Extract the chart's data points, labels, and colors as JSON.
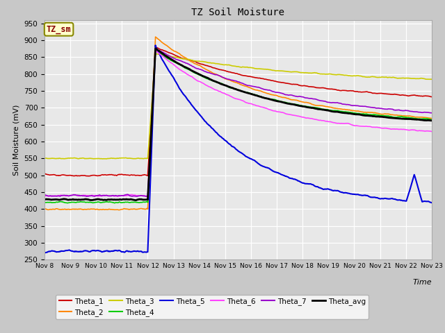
{
  "title": "TZ Soil Moisture",
  "xlabel": "Time",
  "ylabel": "Soil Moisture (mV)",
  "ylim": [
    250,
    960
  ],
  "yticks": [
    250,
    300,
    350,
    400,
    450,
    500,
    550,
    600,
    650,
    700,
    750,
    800,
    850,
    900,
    950
  ],
  "xtick_labels": [
    "Nov 8",
    "Nov 9",
    "Nov 10",
    "Nov 11",
    "Nov 12",
    "Nov 13",
    "Nov 14",
    "Nov 15",
    "Nov 16",
    "Nov 17",
    "Nov 18",
    "Nov 19",
    "Nov 20",
    "Nov 21",
    "Nov 22",
    "Nov 23"
  ],
  "fig_bg": "#c8c8c8",
  "plot_bg": "#e8e8e8",
  "series": {
    "Theta_1": {
      "color": "#cc0000",
      "lw": 1.2
    },
    "Theta_2": {
      "color": "#ff8800",
      "lw": 1.2
    },
    "Theta_3": {
      "color": "#cccc00",
      "lw": 1.2
    },
    "Theta_4": {
      "color": "#00cc00",
      "lw": 1.2
    },
    "Theta_5": {
      "color": "#0000dd",
      "lw": 1.5
    },
    "Theta_6": {
      "color": "#ff44ff",
      "lw": 1.2
    },
    "Theta_7": {
      "color": "#9900cc",
      "lw": 1.2
    },
    "Theta_avg": {
      "color": "#000000",
      "lw": 2.0
    }
  },
  "legend_label": "TZ_sm",
  "legend_box_facecolor": "#ffffcc",
  "legend_box_edgecolor": "#888800",
  "legend_text_color": "#880000"
}
